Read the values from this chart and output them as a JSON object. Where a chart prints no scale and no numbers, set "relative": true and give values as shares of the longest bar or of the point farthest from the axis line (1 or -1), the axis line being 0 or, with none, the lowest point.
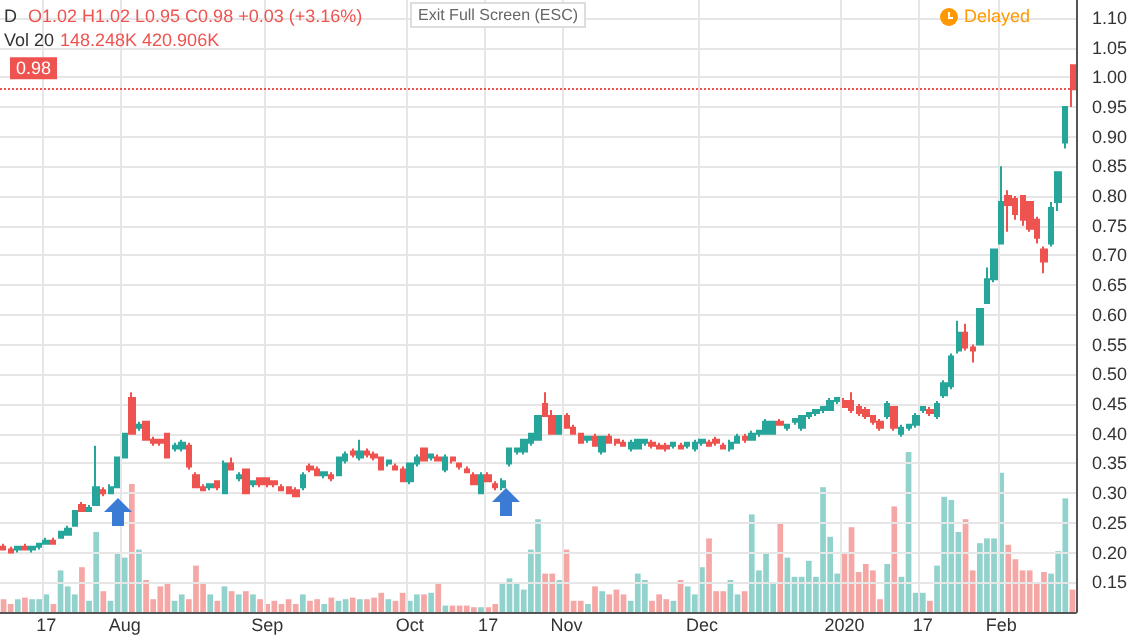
{
  "chart_data": [
    {
      "type": "candlestick",
      "annotations": [
        "D",
        "O1.02 H1.02 L0.95 C0.98 +0.03 (+3.16%)",
        "Vol 20",
        "148.248K 420.906K",
        "Exit Full Screen (ESC)",
        "Delayed"
      ],
      "categories": [
        null,
        null,
        null,
        null,
        null,
        null,
        "17",
        null,
        null,
        null,
        null,
        null,
        null,
        null,
        null,
        null,
        null,
        "Aug",
        null,
        null,
        null,
        null,
        null,
        null,
        null,
        null,
        null,
        null,
        null,
        null,
        null,
        null,
        null,
        null,
        null,
        null,
        null,
        "Sep",
        null,
        null,
        null,
        null,
        null,
        null,
        null,
        null,
        null,
        null,
        null,
        null,
        null,
        null,
        null,
        null,
        null,
        null,
        null,
        "Oct",
        null,
        null,
        null,
        null,
        null,
        null,
        null,
        null,
        null,
        null,
        "17",
        null,
        null,
        null,
        null,
        null,
        null,
        null,
        null,
        null,
        null,
        "Nov",
        null,
        null,
        null,
        null,
        null,
        null,
        null,
        null,
        null,
        null,
        null,
        null,
        null,
        null,
        null,
        null,
        null,
        null,
        "Dec",
        null,
        null,
        null,
        null,
        null,
        null,
        null,
        null,
        null,
        null,
        null,
        null,
        null,
        null,
        null,
        null,
        null,
        null,
        null,
        "2020",
        null,
        null,
        null,
        null,
        null,
        null,
        null,
        null,
        null,
        null,
        "17",
        null,
        null,
        null,
        null,
        null,
        null,
        null,
        null,
        null,
        null,
        "Feb",
        null,
        null,
        null,
        null,
        null,
        null,
        null,
        null,
        null,
        null
      ],
      "ohlc": [
        [
          0.21,
          0.215,
          0.205,
          0.205
        ],
        [
          0.205,
          0.21,
          0.2,
          0.2
        ],
        [
          0.205,
          0.21,
          0.2,
          0.21
        ],
        [
          0.21,
          0.215,
          0.205,
          0.205
        ],
        [
          0.205,
          0.21,
          0.2,
          0.21
        ],
        [
          0.21,
          0.215,
          0.205,
          0.215
        ],
        [
          0.215,
          0.225,
          0.215,
          0.22
        ],
        [
          0.22,
          0.225,
          0.215,
          0.215
        ],
        [
          0.225,
          0.235,
          0.225,
          0.235
        ],
        [
          0.23,
          0.245,
          0.23,
          0.24
        ],
        [
          0.245,
          0.27,
          0.245,
          0.27
        ],
        [
          0.28,
          0.285,
          0.27,
          0.27
        ],
        [
          0.27,
          0.28,
          0.27,
          0.275
        ],
        [
          0.28,
          0.38,
          0.28,
          0.31
        ],
        [
          0.305,
          0.31,
          0.295,
          0.3
        ],
        [
          0.3,
          0.315,
          0.3,
          0.31
        ],
        [
          0.31,
          0.36,
          0.31,
          0.36
        ],
        [
          0.36,
          0.4,
          0.36,
          0.4
        ],
        [
          0.46,
          0.47,
          0.4,
          0.4
        ],
        [
          0.41,
          0.42,
          0.405,
          0.415
        ],
        [
          0.42,
          0.42,
          0.39,
          0.39
        ],
        [
          0.39,
          0.395,
          0.38,
          0.385
        ],
        [
          0.39,
          0.39,
          0.38,
          0.385
        ],
        [
          0.4,
          0.4,
          0.36,
          0.36
        ],
        [
          0.375,
          0.385,
          0.37,
          0.38
        ],
        [
          0.375,
          0.39,
          0.37,
          0.385
        ],
        [
          0.38,
          0.385,
          0.34,
          0.345
        ],
        [
          0.33,
          0.335,
          0.31,
          0.31
        ],
        [
          0.31,
          0.315,
          0.305,
          0.305
        ],
        [
          0.31,
          0.315,
          0.305,
          0.315
        ],
        [
          0.32,
          0.32,
          0.305,
          0.31
        ],
        [
          0.3,
          0.355,
          0.3,
          0.35
        ],
        [
          0.35,
          0.36,
          0.34,
          0.34
        ],
        [
          0.325,
          0.335,
          0.32,
          0.33
        ],
        [
          0.34,
          0.34,
          0.3,
          0.3
        ],
        [
          0.315,
          0.32,
          0.31,
          0.32
        ],
        [
          0.325,
          0.325,
          0.31,
          0.315
        ],
        [
          0.325,
          0.325,
          0.31,
          0.315
        ],
        [
          0.32,
          0.32,
          0.31,
          0.315
        ],
        [
          0.31,
          0.315,
          0.305,
          0.305
        ],
        [
          0.31,
          0.31,
          0.3,
          0.3
        ],
        [
          0.305,
          0.31,
          0.295,
          0.295
        ],
        [
          0.31,
          0.335,
          0.305,
          0.33
        ],
        [
          0.345,
          0.35,
          0.335,
          0.34
        ],
        [
          0.34,
          0.345,
          0.33,
          0.33
        ],
        [
          0.33,
          0.335,
          0.325,
          0.335
        ],
        [
          0.33,
          0.335,
          0.32,
          0.325
        ],
        [
          0.33,
          0.36,
          0.33,
          0.36
        ],
        [
          0.355,
          0.37,
          0.35,
          0.365
        ],
        [
          0.37,
          0.375,
          0.36,
          0.365
        ],
        [
          0.36,
          0.39,
          0.355,
          0.37
        ],
        [
          0.37,
          0.375,
          0.36,
          0.365
        ],
        [
          0.365,
          0.37,
          0.355,
          0.36
        ],
        [
          0.36,
          0.36,
          0.34,
          0.34
        ],
        [
          0.35,
          0.355,
          0.345,
          0.355
        ],
        [
          0.345,
          0.35,
          0.34,
          0.34
        ],
        [
          0.34,
          0.345,
          0.32,
          0.32
        ],
        [
          0.32,
          0.35,
          0.315,
          0.35
        ],
        [
          0.35,
          0.365,
          0.345,
          0.36
        ],
        [
          0.375,
          0.375,
          0.355,
          0.355
        ],
        [
          0.36,
          0.365,
          0.355,
          0.365
        ],
        [
          0.36,
          0.365,
          0.355,
          0.355
        ],
        [
          0.34,
          0.365,
          0.335,
          0.36
        ],
        [
          0.36,
          0.36,
          0.35,
          0.355
        ],
        [
          0.35,
          0.35,
          0.34,
          0.345
        ],
        [
          0.34,
          0.345,
          0.335,
          0.335
        ],
        [
          0.33,
          0.335,
          0.315,
          0.315
        ],
        [
          0.3,
          0.335,
          0.3,
          0.33
        ],
        [
          0.33,
          0.335,
          0.32,
          0.32
        ],
        [
          0.315,
          0.32,
          0.305,
          0.31
        ],
        [
          0.31,
          0.325,
          0.305,
          0.32
        ],
        [
          0.35,
          0.375,
          0.345,
          0.375
        ],
        [
          0.37,
          0.375,
          0.365,
          0.375
        ],
        [
          0.37,
          0.39,
          0.365,
          0.39
        ],
        [
          0.385,
          0.4,
          0.38,
          0.4
        ],
        [
          0.39,
          0.43,
          0.39,
          0.43
        ],
        [
          0.45,
          0.47,
          0.43,
          0.43
        ],
        [
          0.43,
          0.44,
          0.4,
          0.4
        ],
        [
          0.4,
          0.43,
          0.4,
          0.43
        ],
        [
          0.43,
          0.435,
          0.41,
          0.41
        ],
        [
          0.41,
          0.415,
          0.4,
          0.4
        ],
        [
          0.4,
          0.4,
          0.385,
          0.385
        ],
        [
          0.39,
          0.395,
          0.385,
          0.395
        ],
        [
          0.395,
          0.4,
          0.38,
          0.38
        ],
        [
          0.37,
          0.395,
          0.365,
          0.395
        ],
        [
          0.395,
          0.4,
          0.385,
          0.385
        ],
        [
          0.39,
          0.39,
          0.38,
          0.385
        ],
        [
          0.385,
          0.39,
          0.38,
          0.38
        ],
        [
          0.375,
          0.39,
          0.37,
          0.385
        ],
        [
          0.375,
          0.39,
          0.375,
          0.39
        ],
        [
          0.385,
          0.39,
          0.38,
          0.39
        ],
        [
          0.385,
          0.39,
          0.375,
          0.38
        ],
        [
          0.38,
          0.385,
          0.375,
          0.375
        ],
        [
          0.38,
          0.385,
          0.37,
          0.375
        ],
        [
          0.38,
          0.385,
          0.375,
          0.385
        ],
        [
          0.38,
          0.385,
          0.375,
          0.375
        ],
        [
          0.38,
          0.385,
          0.375,
          0.385
        ],
        [
          0.375,
          0.39,
          0.37,
          0.385
        ],
        [
          0.385,
          0.39,
          0.38,
          0.39
        ],
        [
          0.385,
          0.39,
          0.38,
          0.38
        ],
        [
          0.39,
          0.395,
          0.38,
          0.385
        ],
        [
          0.38,
          0.385,
          0.375,
          0.375
        ],
        [
          0.375,
          0.39,
          0.37,
          0.385
        ],
        [
          0.385,
          0.4,
          0.385,
          0.395
        ],
        [
          0.395,
          0.4,
          0.385,
          0.39
        ],
        [
          0.39,
          0.405,
          0.39,
          0.4
        ],
        [
          0.4,
          0.405,
          0.395,
          0.405
        ],
        [
          0.4,
          0.425,
          0.4,
          0.42
        ],
        [
          0.4,
          0.42,
          0.4,
          0.42
        ],
        [
          0.42,
          0.425,
          0.415,
          0.415
        ],
        [
          0.41,
          0.415,
          0.405,
          0.415
        ],
        [
          0.42,
          0.425,
          0.415,
          0.425
        ],
        [
          0.41,
          0.43,
          0.405,
          0.43
        ],
        [
          0.43,
          0.435,
          0.425,
          0.435
        ],
        [
          0.435,
          0.44,
          0.43,
          0.44
        ],
        [
          0.44,
          0.445,
          0.435,
          0.445
        ],
        [
          0.44,
          0.46,
          0.44,
          0.455
        ],
        [
          0.455,
          0.46,
          0.45,
          0.46
        ],
        [
          0.455,
          0.46,
          0.445,
          0.445
        ],
        [
          0.455,
          0.47,
          0.435,
          0.44
        ],
        [
          0.445,
          0.45,
          0.43,
          0.435
        ],
        [
          0.44,
          0.445,
          0.425,
          0.43
        ],
        [
          0.43,
          0.43,
          0.415,
          0.42
        ],
        [
          0.42,
          0.425,
          0.405,
          0.41
        ],
        [
          0.43,
          0.455,
          0.425,
          0.45
        ],
        [
          0.445,
          0.445,
          0.405,
          0.41
        ],
        [
          0.4,
          0.415,
          0.395,
          0.41
        ],
        [
          0.41,
          0.415,
          0.405,
          0.415
        ],
        [
          0.415,
          0.435,
          0.41,
          0.43
        ],
        [
          0.44,
          0.445,
          0.435,
          0.445
        ],
        [
          0.44,
          0.445,
          0.43,
          0.435
        ],
        [
          0.43,
          0.455,
          0.425,
          0.45
        ],
        [
          0.465,
          0.49,
          0.46,
          0.485
        ],
        [
          0.48,
          0.535,
          0.475,
          0.53
        ],
        [
          0.54,
          0.59,
          0.535,
          0.57
        ],
        [
          0.57,
          0.585,
          0.54,
          0.545
        ],
        [
          0.545,
          0.55,
          0.52,
          0.54
        ],
        [
          0.55,
          0.61,
          0.55,
          0.61
        ],
        [
          0.62,
          0.68,
          0.62,
          0.66
        ],
        [
          0.66,
          0.71,
          0.655,
          0.71
        ],
        [
          0.72,
          0.85,
          0.72,
          0.79
        ],
        [
          0.8,
          0.81,
          0.74,
          0.785
        ],
        [
          0.795,
          0.8,
          0.76,
          0.77
        ],
        [
          0.8,
          0.8,
          0.75,
          0.76
        ],
        [
          0.79,
          0.79,
          0.74,
          0.745
        ],
        [
          0.76,
          0.765,
          0.72,
          0.73
        ],
        [
          0.71,
          0.715,
          0.67,
          0.69
        ],
        [
          0.72,
          0.79,
          0.715,
          0.78
        ],
        [
          0.79,
          0.84,
          0.775,
          0.84
        ],
        [
          0.89,
          0.95,
          0.88,
          0.95
        ],
        [
          1.02,
          1.02,
          0.95,
          0.98
        ]
      ],
      "ylim": [
        0.1,
        1.13
      ],
      "yticks": [
        {
          "value": 0.15,
          "label": "0.15"
        },
        {
          "value": 0.2,
          "label": "0.20"
        },
        {
          "value": 0.25,
          "label": "0.25"
        },
        {
          "value": 0.3,
          "label": "0.30"
        },
        {
          "value": 0.35,
          "label": "0.35"
        },
        {
          "value": 0.4,
          "label": "0.40"
        },
        {
          "value": 0.45,
          "label": "0.45"
        },
        {
          "value": 0.5,
          "label": "0.50"
        },
        {
          "value": 0.55,
          "label": "0.55"
        },
        {
          "value": 0.6,
          "label": "0.60"
        },
        {
          "value": 0.65,
          "label": "0.65"
        },
        {
          "value": 0.7,
          "label": "0.70"
        },
        {
          "value": 0.75,
          "label": "0.75"
        },
        {
          "value": 0.8,
          "label": "0.80"
        },
        {
          "value": 0.85,
          "label": "0.85"
        },
        {
          "value": 0.9,
          "label": "0.90"
        },
        {
          "value": 0.95,
          "label": "0.95"
        },
        {
          "value": 1.0,
          "label": "1.00"
        },
        {
          "value": 1.05,
          "label": "1.05"
        },
        {
          "value": 1.1,
          "label": "1.10"
        }
      ],
      "ref_lines": [
        {
          "axis": "y",
          "value": 0.98,
          "label": "0.98",
          "color": "#ef5350",
          "line_style": "dotted"
        }
      ],
      "grid": true
    },
    {
      "type": "bar",
      "relative": true,
      "tick_labels": false,
      "categories": [
        null,
        null,
        null,
        null,
        null,
        null,
        null,
        null,
        null,
        null,
        null,
        null,
        null,
        null,
        null,
        null,
        null,
        null,
        null,
        null,
        null,
        null,
        null,
        null,
        null,
        null,
        null,
        null,
        null,
        null,
        null,
        null,
        null,
        null,
        null,
        null,
        null,
        null,
        null,
        null,
        null,
        null,
        null,
        null,
        null,
        null,
        null,
        null,
        null,
        null,
        null,
        null,
        null,
        null,
        null,
        null,
        null,
        null,
        null,
        null,
        null,
        null,
        null,
        null,
        null,
        null,
        null,
        null,
        null,
        null,
        null,
        null,
        null,
        null,
        null,
        null,
        null,
        null,
        null,
        null,
        null,
        null,
        null,
        null,
        null,
        null,
        null,
        null,
        null,
        null,
        null,
        null,
        null,
        null,
        null,
        null,
        null,
        null,
        null,
        null,
        null,
        null,
        null,
        null,
        null,
        null,
        null,
        null,
        null,
        null,
        null,
        null,
        null,
        null,
        null,
        null,
        null,
        null,
        null,
        null,
        null,
        null,
        null,
        null,
        null,
        null,
        null,
        null,
        null,
        null,
        null,
        null,
        null,
        null,
        null,
        null,
        null,
        null,
        null,
        null,
        null,
        null,
        null,
        null,
        null,
        null,
        null,
        null,
        null,
        null,
        null
      ],
      "values": [
        0.08,
        0.05,
        0.08,
        0.09,
        0.08,
        0.08,
        0.11,
        0.05,
        0.26,
        0.16,
        0.11,
        0.28,
        0.07,
        0.5,
        0.13,
        0.07,
        0.37,
        0.34,
        0.8,
        0.39,
        0.2,
        0.08,
        0.16,
        0.18,
        0.07,
        0.11,
        0.08,
        0.29,
        0.18,
        0.11,
        0.07,
        0.16,
        0.13,
        0.11,
        0.13,
        0.11,
        0.08,
        0.05,
        0.07,
        0.05,
        0.08,
        0.05,
        0.11,
        0.07,
        0.08,
        0.05,
        0.09,
        0.07,
        0.08,
        0.09,
        0.08,
        0.08,
        0.09,
        0.12,
        0.08,
        0.07,
        0.12,
        0.07,
        0.11,
        0.11,
        0.12,
        0.18,
        0.04,
        0.04,
        0.04,
        0.04,
        0.03,
        0.03,
        0.03,
        0.05,
        0.18,
        0.21,
        0.18,
        0.14,
        0.39,
        0.58,
        0.24,
        0.24,
        0.2,
        0.39,
        0.07,
        0.07,
        0.05,
        0.16,
        0.13,
        0.11,
        0.14,
        0.11,
        0.07,
        0.24,
        0.2,
        0.07,
        0.11,
        0.08,
        0.07,
        0.2,
        0.16,
        0.11,
        0.28,
        0.46,
        0.13,
        0.13,
        0.2,
        0.11,
        0.13,
        0.61,
        0.26,
        0.37,
        0.18,
        0.55,
        0.34,
        0.22,
        0.22,
        0.32,
        0.22,
        0.78,
        0.47,
        0.24,
        0.37,
        0.53,
        0.25,
        0.3,
        0.26,
        0.08,
        0.3,
        0.66,
        0.22,
        1,
        0.12,
        0.12,
        0.07,
        0.29,
        0.72,
        0.7,
        0.5,
        0.58,
        0.26,
        0.43,
        0.46,
        0.46,
        0.87,
        0.42,
        0.33,
        0.26,
        0.26,
        0.18,
        0.25,
        0.24,
        0.38,
        0.71,
        0.14
      ]
    }
  ]
}
